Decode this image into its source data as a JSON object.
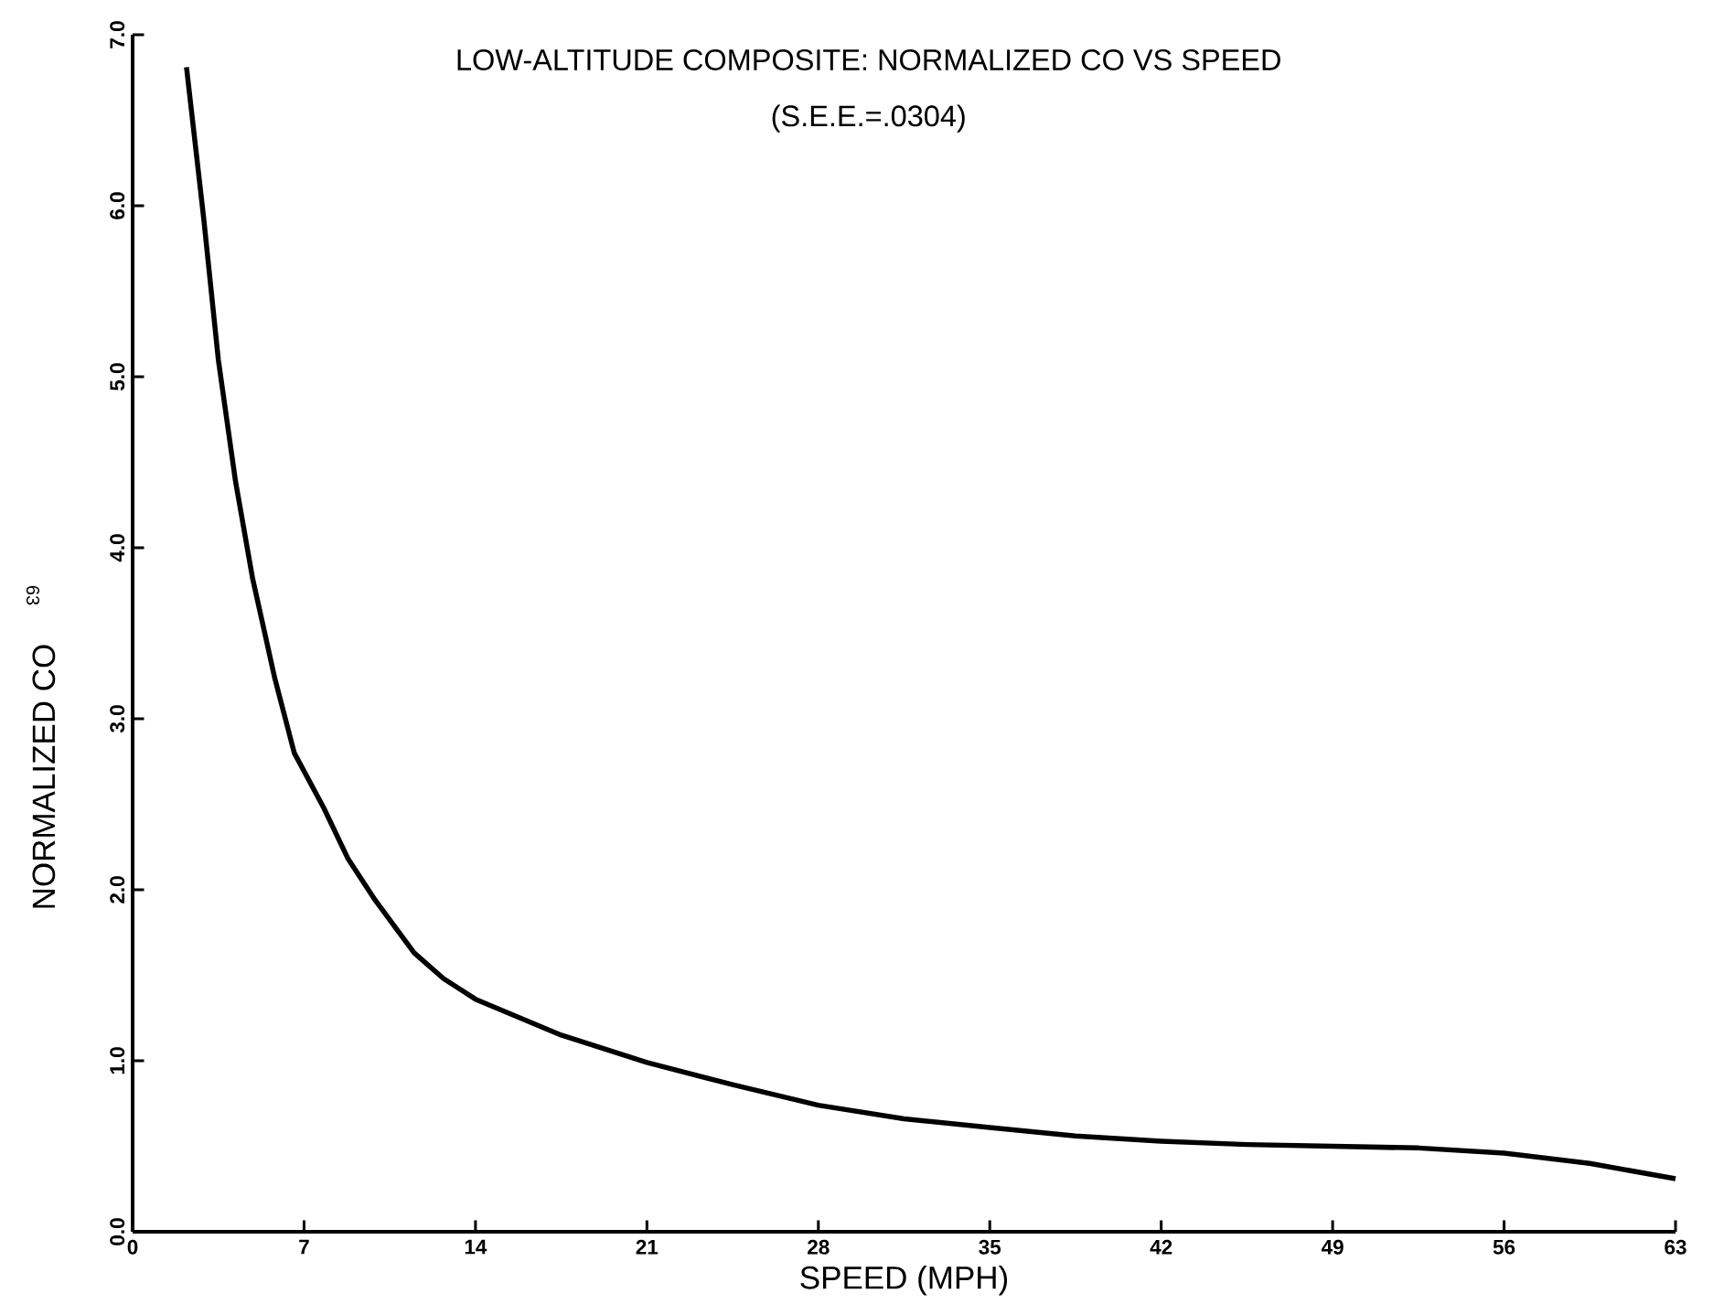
{
  "chart_data": {
    "type": "line",
    "title": "LOW-ALTITUDE COMPOSITE: NORMALIZED CO VS SPEED",
    "subtitle": "(S.E.E.=.0304)",
    "xlabel": "SPEED (MPH)",
    "ylabel": "NORMALIZED CO",
    "annotations": [
      "63"
    ],
    "x": [
      2.2,
      2.9,
      3.5,
      4.2,
      4.9,
      5.8,
      6.6,
      7.8,
      8.8,
      9.9,
      11.5,
      12.7,
      14,
      17.5,
      21,
      24.5,
      28,
      31.5,
      35,
      38.5,
      42,
      45.5,
      49,
      52.5,
      56,
      59.5,
      63
    ],
    "series": [
      {
        "color": "#000000",
        "values": [
          6.81,
          5.93,
          5.1,
          4.39,
          3.82,
          3.24,
          2.8,
          2.48,
          2.18,
          1.94,
          1.63,
          1.48,
          1.36,
          1.15,
          0.99,
          0.86,
          0.74,
          0.66,
          0.61,
          0.56,
          0.53,
          0.51,
          0.5,
          0.49,
          0.46,
          0.4,
          0.31
        ]
      }
    ],
    "xlim": [
      0,
      63
    ],
    "ylim": [
      0,
      7
    ],
    "xticks": [
      0,
      7,
      14,
      21,
      28,
      35,
      42,
      49,
      56,
      63
    ],
    "yticks": [
      {
        "value": 0,
        "label": "0.0"
      },
      {
        "value": 1,
        "label": "1.0"
      },
      {
        "value": 2,
        "label": "2.0"
      },
      {
        "value": 3,
        "label": "3.0"
      },
      {
        "value": 4,
        "label": "4.0"
      },
      {
        "value": 5,
        "label": "5.0"
      },
      {
        "value": 6,
        "label": "6.0"
      },
      {
        "value": 7,
        "label": "7.0"
      }
    ],
    "marker": "none",
    "line_style": "solid"
  }
}
